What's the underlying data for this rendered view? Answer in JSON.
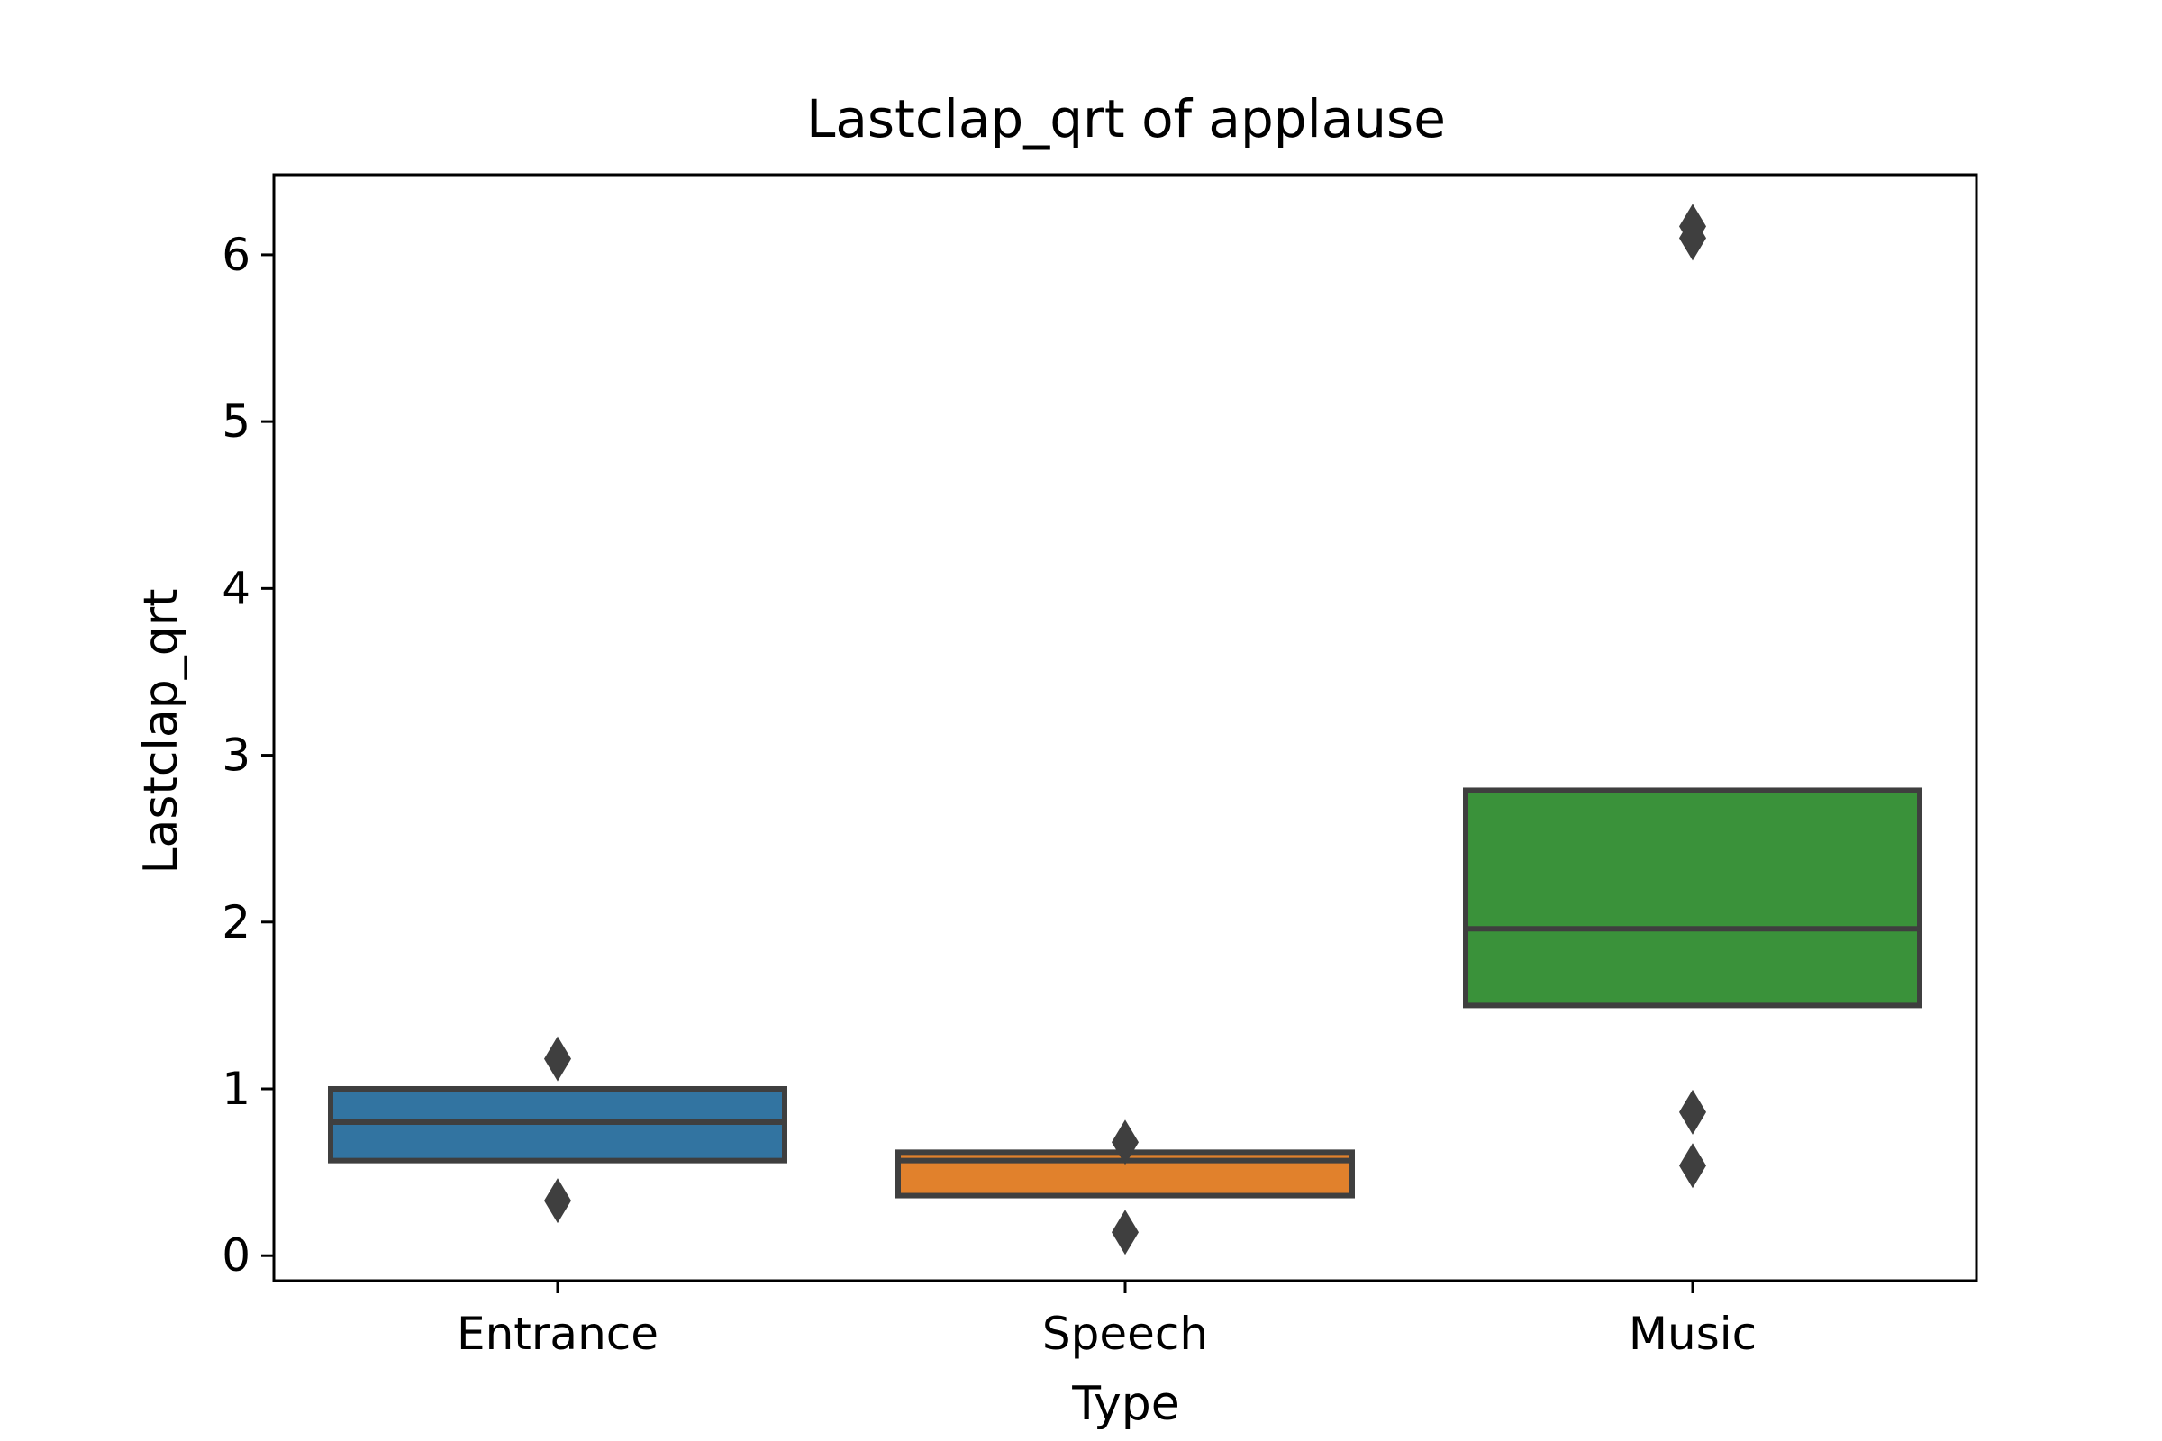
{
  "chart_data": {
    "type": "boxplot",
    "title": "Lastclap_qrt of applause",
    "xlabel": "Type",
    "ylabel": "Lastclap_qrt",
    "categories": [
      "Entrance",
      "Speech",
      "Music"
    ],
    "ylim": [
      -0.15,
      6.48
    ],
    "yticks": [
      "0",
      "1",
      "2",
      "3",
      "4",
      "5",
      "6"
    ],
    "grid": false,
    "boxes": [
      {
        "category": "Entrance",
        "q1": 0.57,
        "median": 0.8,
        "q3": 1.0,
        "outliers": [
          1.18,
          0.33
        ],
        "color": "#3274a1"
      },
      {
        "category": "Speech",
        "q1": 0.36,
        "median": 0.57,
        "q3": 0.62,
        "outliers": [
          0.68,
          0.14
        ],
        "color": "#e1812c"
      },
      {
        "category": "Music",
        "q1": 1.5,
        "median": 1.96,
        "q3": 2.79,
        "outliers": [
          6.17,
          6.1,
          0.86,
          0.54
        ],
        "color": "#3a923a"
      }
    ],
    "edge_color": "#3f3f3f"
  }
}
